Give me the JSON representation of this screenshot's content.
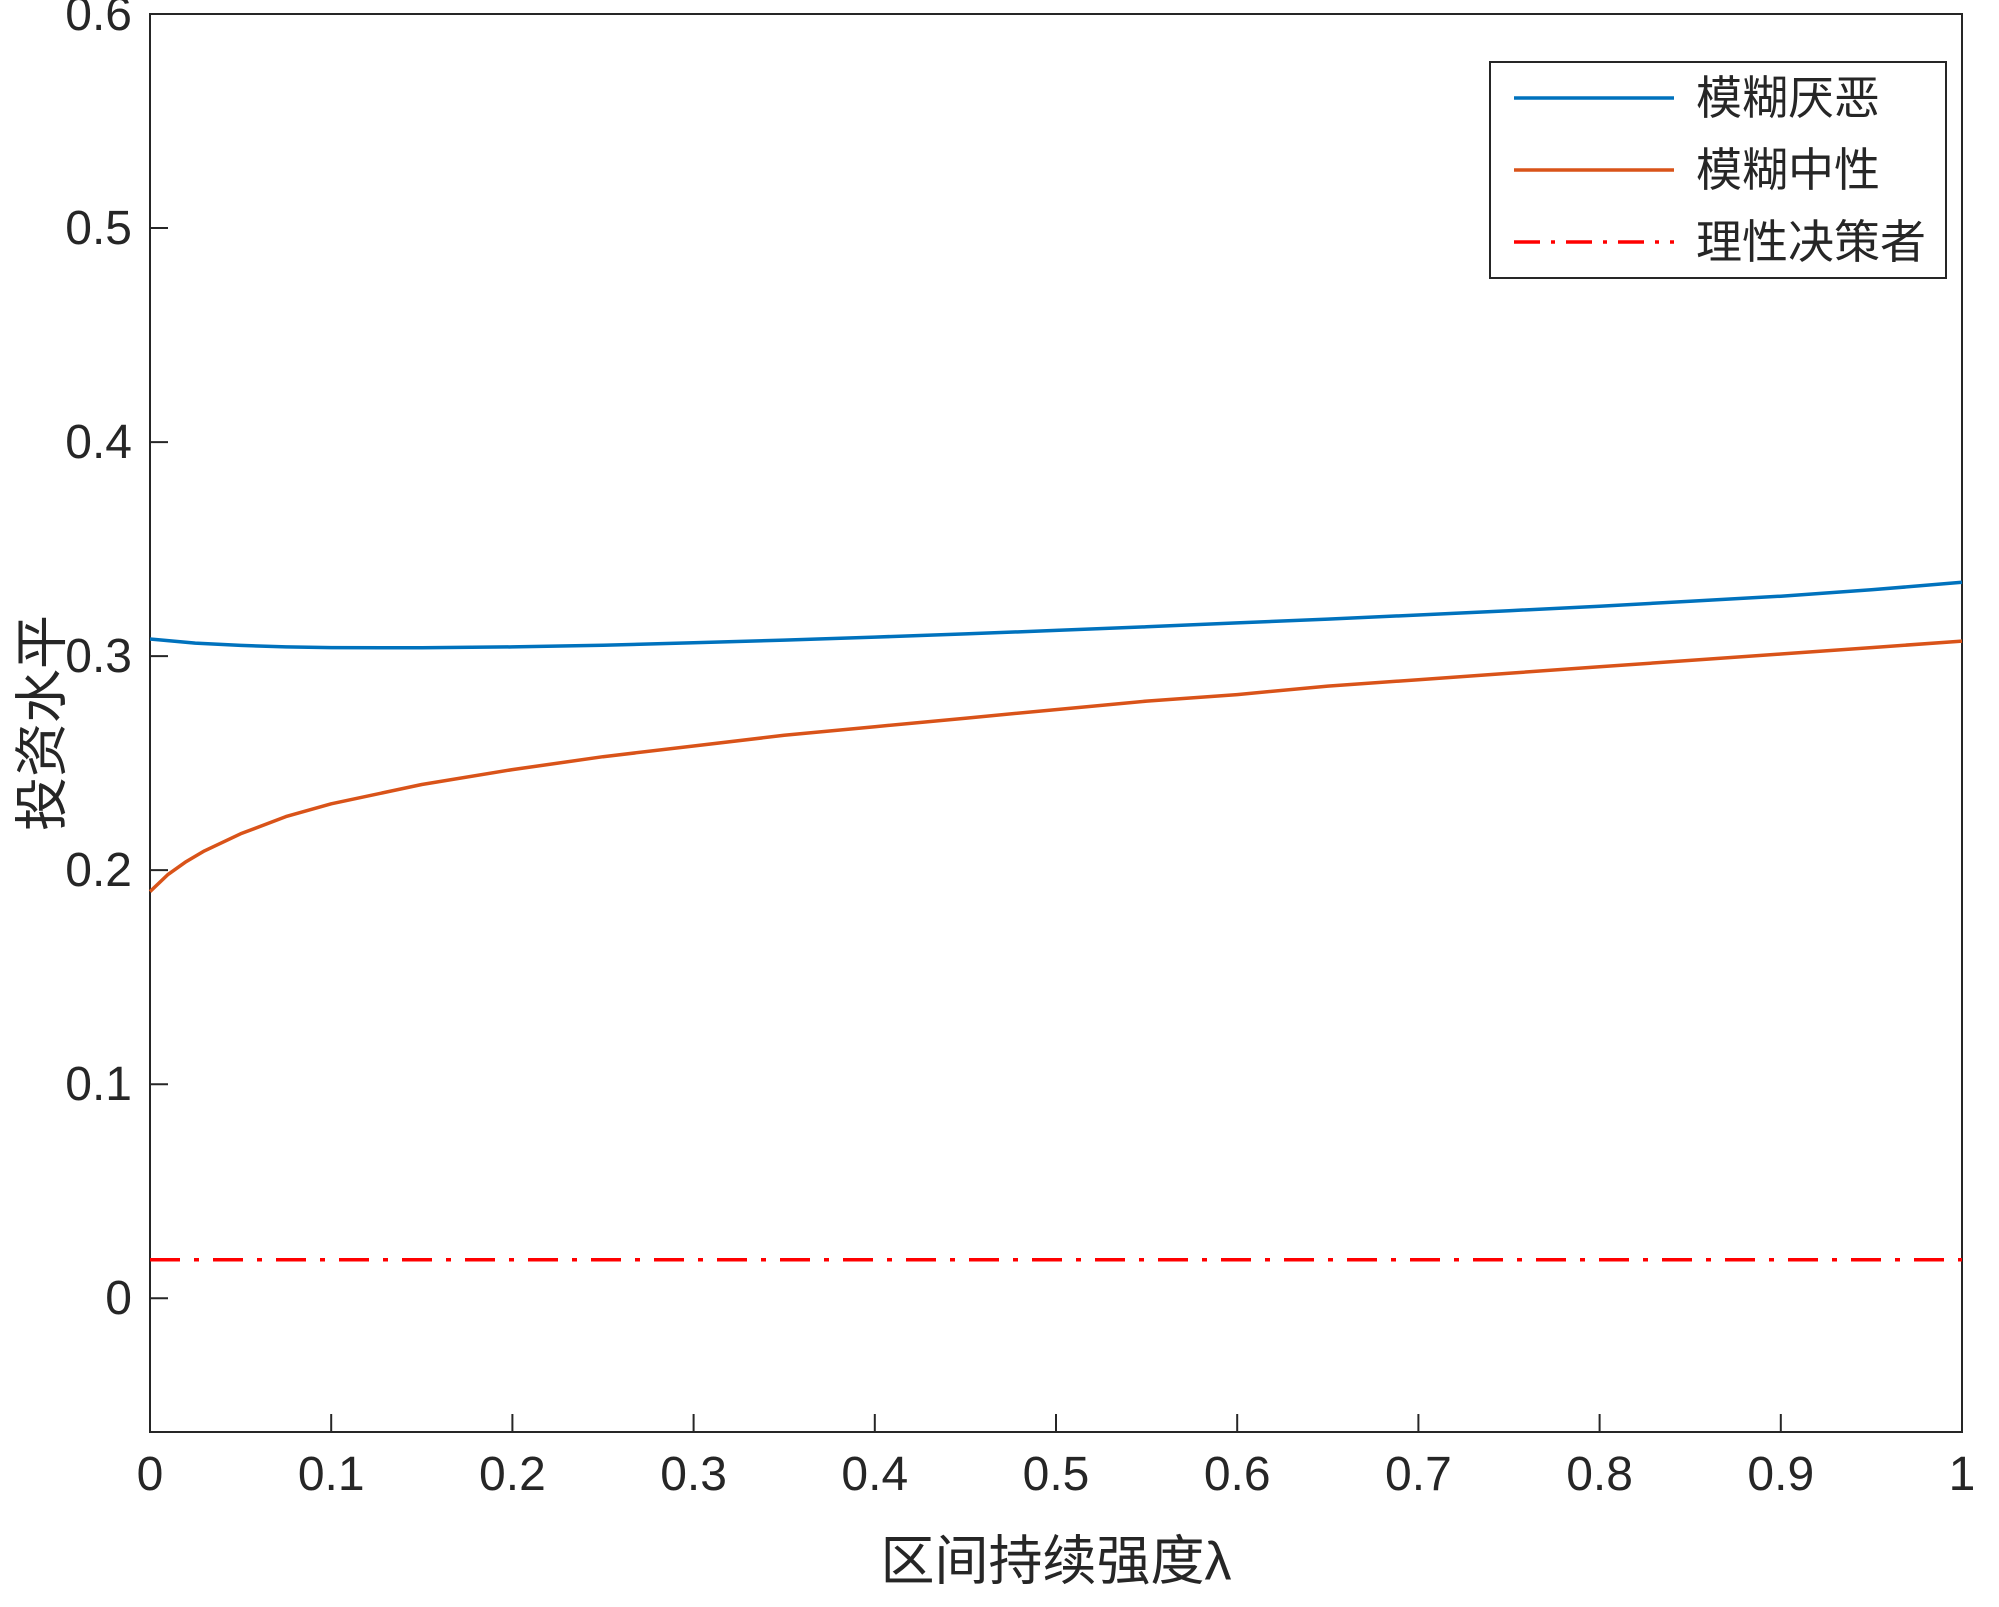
{
  "figure": {
    "background": "#ffffff",
    "axis_color": "#262626",
    "tick_label_color": "#262626"
  },
  "chart_data": {
    "type": "line",
    "title": "",
    "xlabel": "区间持续强度λ",
    "ylabel": "投资水平",
    "xlim": [
      0,
      1
    ],
    "ylim": [
      -0.0625,
      0.6
    ],
    "grid": false,
    "legend_position": "top-right",
    "x_ticks": [
      0,
      0.1,
      0.2,
      0.3,
      0.4,
      0.5,
      0.6,
      0.7,
      0.8,
      0.9,
      1
    ],
    "x_tick_labels": [
      "0",
      "0.1",
      "0.2",
      "0.3",
      "0.4",
      "0.5",
      "0.6",
      "0.7",
      "0.8",
      "0.9",
      "1"
    ],
    "y_ticks": [
      0,
      0.1,
      0.2,
      0.3,
      0.4,
      0.5,
      0.6
    ],
    "y_tick_labels": [
      "0",
      "0.1",
      "0.2",
      "0.3",
      "0.4",
      "0.5",
      "0.6"
    ],
    "series": [
      {
        "name": "模糊厌恶",
        "slug": "ambiguity-aversion",
        "color": "#0072BD",
        "style": "solid",
        "x": [
          0,
          0.025,
          0.05,
          0.075,
          0.1,
          0.15,
          0.2,
          0.25,
          0.3,
          0.35,
          0.4,
          0.45,
          0.5,
          0.55,
          0.6,
          0.65,
          0.7,
          0.75,
          0.8,
          0.85,
          0.9,
          0.95,
          1
        ],
        "y": [
          0.308,
          0.3061,
          0.305,
          0.3043,
          0.304,
          0.3039,
          0.3043,
          0.3051,
          0.3062,
          0.3075,
          0.3089,
          0.3104,
          0.312,
          0.3137,
          0.3155,
          0.3173,
          0.3192,
          0.3212,
          0.3233,
          0.3256,
          0.328,
          0.331,
          0.3345
        ]
      },
      {
        "name": "模糊中性",
        "slug": "ambiguity-neutral",
        "color": "#D95319",
        "style": "solid",
        "x": [
          0,
          0.01,
          0.02,
          0.03,
          0.05,
          0.075,
          0.1,
          0.15,
          0.2,
          0.25,
          0.3,
          0.35,
          0.4,
          0.45,
          0.5,
          0.55,
          0.6,
          0.65,
          0.7,
          0.75,
          0.8,
          0.85,
          0.9,
          0.95,
          1
        ],
        "y": [
          0.19,
          0.198,
          0.204,
          0.209,
          0.217,
          0.225,
          0.231,
          0.24,
          0.247,
          0.253,
          0.258,
          0.263,
          0.267,
          0.271,
          0.275,
          0.279,
          0.282,
          0.286,
          0.289,
          0.292,
          0.295,
          0.298,
          0.301,
          0.304,
          0.307
        ]
      },
      {
        "name": "理性决策者",
        "slug": "rational-decision-maker",
        "color": "#FF0000",
        "style": "dashdot",
        "x": [
          0,
          1
        ],
        "y": [
          0.018,
          0.018
        ]
      }
    ]
  }
}
